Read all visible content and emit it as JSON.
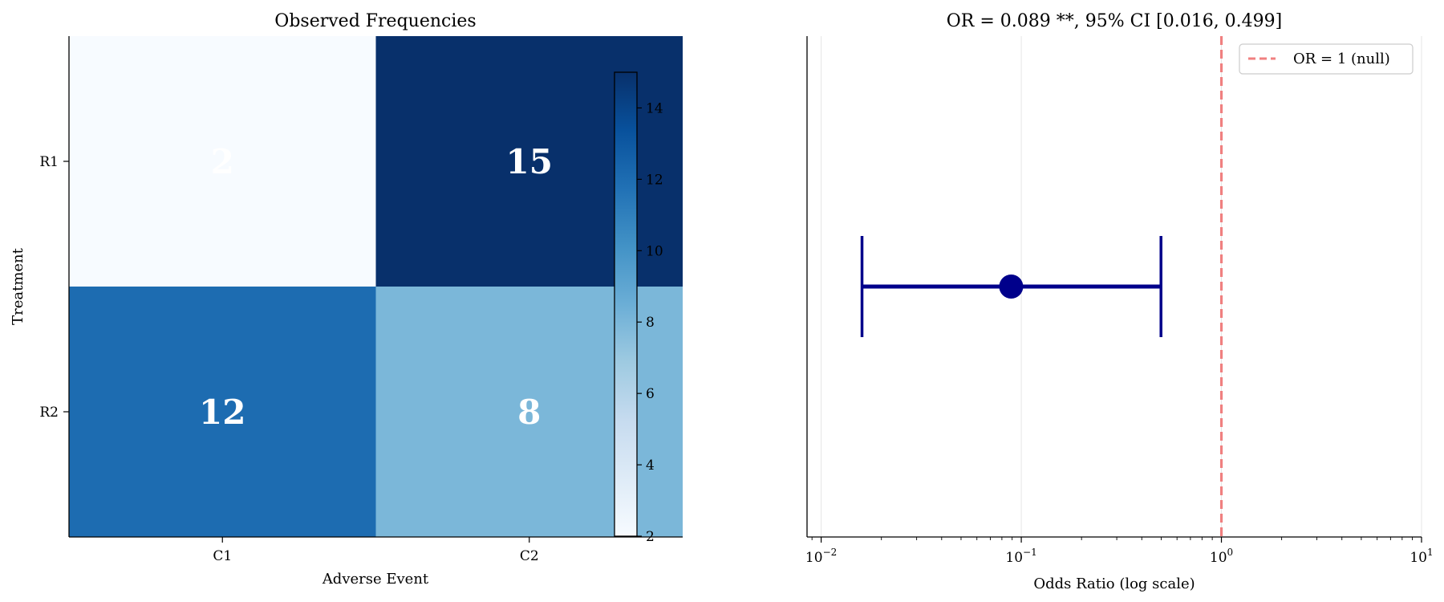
{
  "chart_data": [
    {
      "type": "heatmap",
      "title": "Observed Frequencies",
      "xlabel": "Adverse Event",
      "ylabel": "Treatment",
      "x_categories": [
        "C1",
        "C2"
      ],
      "y_categories": [
        "R1",
        "R2"
      ],
      "values": [
        [
          2,
          15
        ],
        [
          12,
          8
        ]
      ],
      "colormap": "Blues",
      "colorbar": {
        "range": [
          2,
          15
        ],
        "ticks": [
          2,
          4,
          6,
          8,
          10,
          12,
          14
        ]
      }
    },
    {
      "type": "scatter",
      "title": "OR = 0.089 **, 95% CI [0.016, 0.499]",
      "xlabel": "Odds Ratio (log scale)",
      "ylabel": "",
      "xscale": "log",
      "xlim": [
        0.0085,
        10
      ],
      "x_major_ticks": [
        0.01,
        0.1,
        1,
        10
      ],
      "x_tick_labels": [
        {
          "base": "10",
          "exp": "−2"
        },
        {
          "base": "10",
          "exp": "−1"
        },
        {
          "base": "10",
          "exp": "0"
        },
        {
          "base": "10",
          "exp": "1"
        }
      ],
      "estimate": 0.089,
      "ci": [
        0.016,
        0.499
      ],
      "marker_color": "#00008b",
      "reference_line": {
        "x": 1,
        "label": "OR = 1 (null)",
        "color": "#f08080",
        "style": "dashed"
      },
      "legend_position": "top-right",
      "grid": "x-major"
    }
  ]
}
